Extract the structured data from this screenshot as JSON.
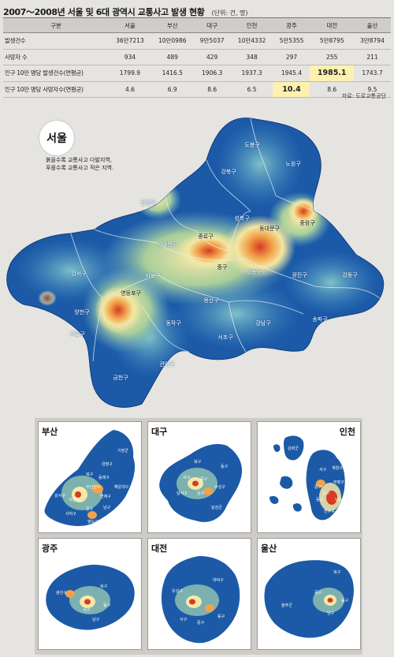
{
  "title": {
    "main": "2007～2008년 서울 및 6대 광역시 교통사고 발생 현황",
    "unit": "(단위: 건, 명)"
  },
  "table": {
    "header": [
      "구분",
      "서울",
      "부산",
      "대구",
      "인천",
      "광주",
      "대전",
      "울산"
    ],
    "rows": [
      {
        "label": "발생건수",
        "values": [
          "36만7213",
          "10만0986",
          "9만5037",
          "10만4332",
          "5만5355",
          "5만8795",
          "3만8794"
        ]
      },
      {
        "label": "사망자 수",
        "values": [
          "934",
          "489",
          "429",
          "348",
          "297",
          "255",
          "211"
        ]
      },
      {
        "label": "인구 10만 명당 발생건수(연평균)",
        "values": [
          "1799.9",
          "1416.5",
          "1906.3",
          "1937.3",
          "1945.4",
          "1985.1",
          "1743.7"
        ]
      },
      {
        "label": "인구 10만 명당 사망자수(연평균)",
        "values": [
          "4.6",
          "6.9",
          "8.6",
          "6.5",
          "10.4",
          "8.6",
          "9.5"
        ]
      }
    ]
  },
  "source": "자료: 도로교통공단",
  "seoul": {
    "name": "서울",
    "legend": [
      "붉을수록 교통사고 다발지역,",
      "푸를수록 교통사고 적은 지역."
    ],
    "districts": [
      "도봉구",
      "노원구",
      "강북구",
      "은평구",
      "성북구",
      "중랑구",
      "종로구",
      "동대문구",
      "서대문구",
      "중구",
      "성동구",
      "광진구",
      "강동구",
      "강서구",
      "마포구",
      "영등포구",
      "용산구",
      "양천구",
      "구로구",
      "동작구",
      "서초구",
      "강남구",
      "송파구",
      "관악구",
      "금천구"
    ]
  },
  "cities": [
    {
      "name": "부산",
      "labels": [
        "기장군",
        "금정구",
        "북구",
        "동래구",
        "해운대구",
        "부산진구",
        "강서구",
        "사상구",
        "연제구",
        "남구",
        "사하구",
        "중구",
        "영도구"
      ]
    },
    {
      "name": "대구",
      "labels": [
        "북구",
        "동구",
        "서구",
        "중구",
        "수성구",
        "달서구",
        "남구",
        "달성군"
      ]
    },
    {
      "name": "인천",
      "labels": [
        "강화군",
        "서구",
        "계양구",
        "부평구",
        "남동구",
        "남구",
        "중구",
        "동구",
        "연수구",
        "옹진군"
      ]
    },
    {
      "name": "광주",
      "labels": [
        "광산구",
        "북구",
        "서구",
        "동구",
        "남구"
      ]
    },
    {
      "name": "대전",
      "labels": [
        "유성구",
        "대덕구",
        "서구",
        "중구",
        "동구"
      ]
    },
    {
      "name": "울산",
      "labels": [
        "북구",
        "중구",
        "울주군",
        "동구",
        "남구"
      ]
    }
  ]
}
